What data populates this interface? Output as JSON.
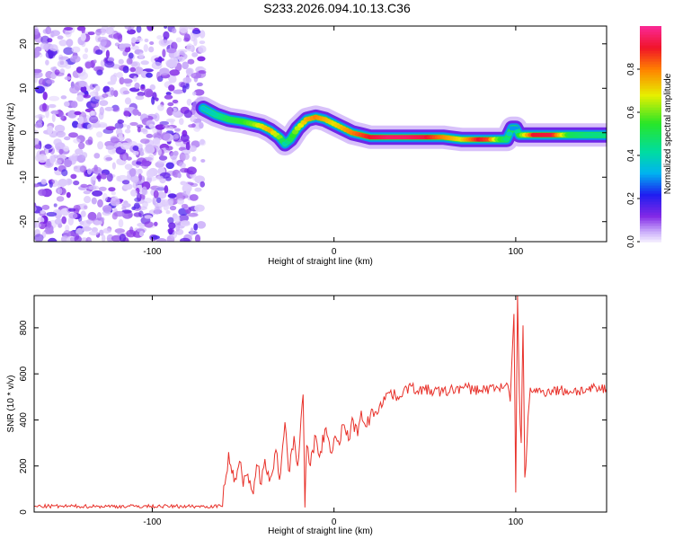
{
  "title": "S233.2026.094.10.13.C36",
  "chart_data": [
    {
      "type": "heatmap",
      "name": "spectrogram",
      "xlabel": "Height of straight line (km)",
      "ylabel": "Frequency (Hz)",
      "xlim": [
        -165,
        150
      ],
      "ylim": [
        -24.5,
        24
      ],
      "xticks": [
        -100,
        0,
        100
      ],
      "yticks": [
        -20,
        -10,
        0,
        10,
        20
      ],
      "noise_region_x": [
        -165,
        -72
      ],
      "ridge": {
        "x": [
          -72,
          -65,
          -58,
          -50,
          -45,
          -40,
          -35,
          -30,
          -27,
          -24,
          -20,
          -15,
          -10,
          -5,
          0,
          5,
          10,
          15,
          20,
          30,
          40,
          50,
          60,
          70,
          80,
          85,
          90,
          95,
          98,
          100,
          102,
          110,
          120,
          130,
          140,
          150
        ],
        "y": [
          5.5,
          4,
          3,
          2.5,
          2,
          1.5,
          0.5,
          -1,
          -2.5,
          -1.5,
          1,
          3,
          3.5,
          3,
          2,
          1,
          0,
          -0.5,
          -1,
          -1,
          -1,
          -1,
          -1,
          -1.5,
          -1.5,
          -1.5,
          -1.5,
          -1.5,
          1,
          1,
          -0.5,
          -0.5,
          -0.5,
          -0.5,
          -0.5,
          -0.5
        ],
        "amplitude": [
          0.35,
          0.4,
          0.5,
          0.55,
          0.6,
          0.7,
          0.75,
          0.6,
          0.4,
          0.5,
          0.65,
          0.75,
          0.8,
          0.75,
          0.7,
          0.75,
          0.8,
          0.85,
          0.9,
          0.95,
          0.95,
          0.92,
          0.8,
          0.7,
          0.9,
          0.85,
          0.6,
          0.45,
          0.3,
          0.3,
          0.55,
          0.9,
          0.92,
          0.5,
          0.45,
          0.45
        ]
      }
    },
    {
      "type": "colorbar",
      "name": "amplitude-colorbar",
      "label": "Normalized spectral amplitude",
      "range": [
        0,
        1
      ],
      "ticks": [
        "0.0",
        "0.2",
        "0.4",
        "0.6",
        "0.8"
      ],
      "tick_values": [
        0,
        0.2,
        0.4,
        0.6,
        0.8
      ]
    },
    {
      "type": "line",
      "name": "snr",
      "xlabel": "Height of straight line (km)",
      "ylabel": "SNR (10 * v/v)",
      "xlim": [
        -165,
        150
      ],
      "ylim": [
        0,
        940
      ],
      "xticks": [
        -100,
        0,
        100
      ],
      "yticks": [
        0,
        200,
        400,
        600,
        800
      ],
      "color": "#e8312a",
      "x": [
        -165,
        -150,
        -130,
        -110,
        -90,
        -75,
        -70,
        -62,
        -60,
        -58,
        -55,
        -52,
        -50,
        -48,
        -45,
        -42,
        -40,
        -38,
        -35,
        -32,
        -30,
        -27,
        -25,
        -22,
        -20,
        -17,
        -16,
        -15,
        -13,
        -10,
        -8,
        -5,
        -2,
        0,
        3,
        5,
        8,
        10,
        13,
        15,
        18,
        20,
        25,
        30,
        35,
        40,
        50,
        60,
        70,
        80,
        90,
        95,
        97,
        99,
        100,
        101,
        102,
        103,
        104,
        105,
        108,
        112,
        120,
        130,
        140,
        150
      ],
      "y": [
        25,
        25,
        25,
        25,
        25,
        25,
        25,
        25,
        120,
        260,
        130,
        220,
        110,
        160,
        90,
        200,
        120,
        230,
        150,
        270,
        140,
        390,
        180,
        330,
        200,
        510,
        20,
        290,
        200,
        330,
        240,
        360,
        260,
        320,
        290,
        380,
        310,
        410,
        330,
        440,
        370,
        420,
        460,
        520,
        500,
        540,
        530,
        520,
        540,
        530,
        540,
        560,
        480,
        860,
        85,
        940,
        520,
        300,
        810,
        150,
        540,
        520,
        530,
        525,
        530,
        535
      ]
    }
  ]
}
